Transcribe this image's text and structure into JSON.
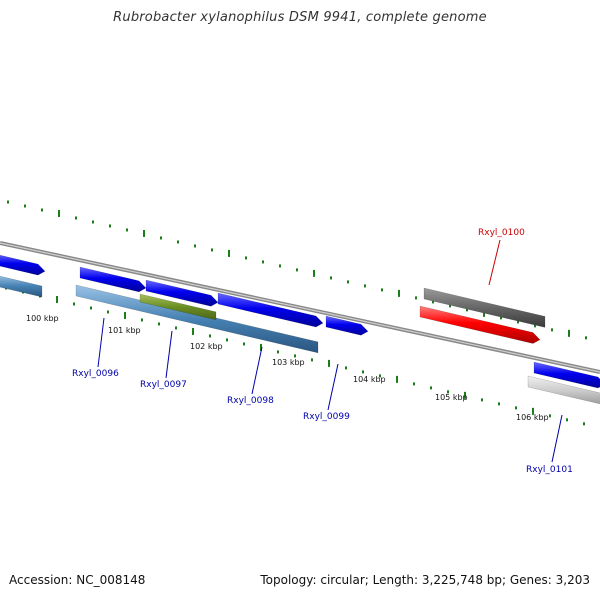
{
  "title": "Rubrobacter xylanophilus DSM 9941, complete genome",
  "footer": {
    "accession": "Accession: NC_008148",
    "summary": "Topology: circular; Length: 3,225,748 bp; Genes: 3,203"
  },
  "colors": {
    "cds_forward": "#0000ee",
    "cds_reverse_highlight": "#ff0000",
    "gene_feature": "#4682b4",
    "misc_feature": "#6b8e23",
    "pseudo_gene": "#666666",
    "light_gene": "#c8c8c8",
    "backbone": "#888888",
    "ticks": "#1a7f1a",
    "label_default": "#0000aa",
    "label_highlight": "#cc0000"
  },
  "ticks": [
    "100 kbp",
    "101 kbp",
    "102 kbp",
    "103 kbp",
    "104 kbp",
    "105 kbp",
    "106 kbp"
  ],
  "genes": [
    {
      "name": "Rxyl_0096",
      "color": "label_default"
    },
    {
      "name": "Rxyl_0097",
      "color": "label_default"
    },
    {
      "name": "Rxyl_0098",
      "color": "label_default"
    },
    {
      "name": "Rxyl_0099",
      "color": "label_default"
    },
    {
      "name": "Rxyl_0100",
      "color": "label_highlight"
    },
    {
      "name": "Rxyl_0101",
      "color": "label_default"
    }
  ]
}
